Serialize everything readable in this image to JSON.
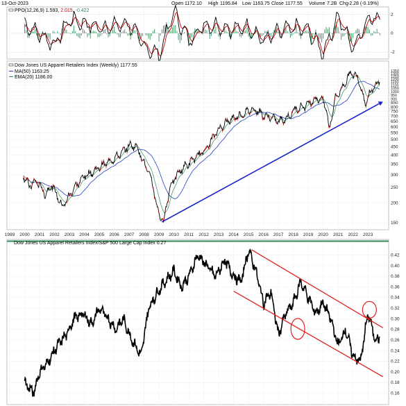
{
  "header": {
    "date": "13-Oct-2023",
    "open_label": "Open",
    "open": "1172.10",
    "high_label": "High",
    "high": "1195.84",
    "low_label": "Low",
    "low": "1163.75",
    "close_label": "Close",
    "close": "1177.55",
    "volume_label": "Volume",
    "volume": "7.2B",
    "chg_label": "Chg",
    "chg": "-2.28 (-0.19%)"
  },
  "ppo_panel": {
    "legend_name": "PPO(12,26,9)",
    "legend_v1": "1.593",
    "legend_v2": "2.015",
    "legend_v3": "-0.422",
    "colors": {
      "ppo": "#000000",
      "signal": "#cc0000",
      "hist": "#2e8b57"
    }
  },
  "price_panel": {
    "legend_title": "Dow Jones US Apparel Retailers Index (Weekly) 1177.55",
    "legend_ma": "MA(50) 1163.25",
    "legend_ema": "EMA(20) 1186.00",
    "colors": {
      "price": "#000000",
      "ma": "#1f3fbf",
      "ema": "#2e8b57",
      "trend": "#1a24c8"
    }
  },
  "ratio_panel": {
    "legend_title": "Dow Jones US Apparel Retailers Index/S&P 500 Large Cap Index 0.27",
    "colors": {
      "ratio": "#000000",
      "channel": "#e02020"
    }
  },
  "chart_data": [
    {
      "type": "line",
      "title": "PPO(12,26,9)",
      "ylim": [
        -2.5,
        2.5
      ],
      "y_ticks": [
        "2",
        "0",
        "-2"
      ],
      "x": [
        1999,
        2000,
        2002,
        2003,
        2005,
        2007,
        2008,
        2009,
        2010,
        2011,
        2012,
        2013,
        2014,
        2015,
        2016,
        2017,
        2018,
        2019,
        2020,
        2021,
        2022,
        2023
      ],
      "series": [
        {
          "name": "PPO",
          "values": [
            0.5,
            1.0,
            -1.2,
            1.5,
            0.6,
            1.0,
            -1.4,
            -2.3,
            2.3,
            -0.8,
            0.9,
            0.8,
            0.4,
            0.7,
            -0.8,
            0.1,
            0.6,
            0.3,
            -2.0,
            1.8,
            -1.6,
            1.593
          ]
        },
        {
          "name": "Signal",
          "values": [
            0.4,
            0.8,
            -0.9,
            1.2,
            0.5,
            0.9,
            -1.1,
            -2.0,
            1.9,
            -0.6,
            0.7,
            0.7,
            0.4,
            0.6,
            -0.6,
            0.0,
            0.5,
            0.3,
            -1.6,
            1.5,
            -1.3,
            2.015
          ]
        }
      ]
    },
    {
      "type": "line",
      "title": "Dow Jones US Apparel Retailers Index (Weekly)",
      "log_scale": true,
      "ylim": [
        140,
        1450
      ],
      "y_ticks": [
        "1350",
        "1300",
        "1250",
        "1200",
        "1150",
        "1100",
        "1050",
        "1000",
        "950",
        "900",
        "850",
        "800",
        "750",
        "700",
        "650",
        "600",
        "550",
        "500",
        "450",
        "400",
        "350",
        "300",
        "250",
        "200",
        "150"
      ],
      "x_ticks": [
        "1999",
        "2000",
        "2001",
        "2002",
        "2003",
        "2004",
        "2005",
        "2006",
        "2007",
        "2008",
        "2009",
        "2010",
        "2011",
        "2012",
        "2013",
        "2014",
        "2015",
        "2016",
        "2017",
        "2018",
        "2019",
        "2020",
        "2021",
        "2022",
        "2023"
      ],
      "x": [
        1999.9,
        2000.3,
        2000.8,
        2001.4,
        2001.8,
        2002.5,
        2002.8,
        2003.2,
        2004.0,
        2004.5,
        2005.2,
        2006.0,
        2006.6,
        2007.0,
        2007.5,
        2008.0,
        2008.5,
        2008.9,
        2009.3,
        2009.8,
        2010.5,
        2011.0,
        2011.6,
        2012.2,
        2013.0,
        2013.5,
        2014.0,
        2014.6,
        2015.2,
        2015.6,
        2016.0,
        2016.5,
        2017.0,
        2017.6,
        2018.2,
        2018.8,
        2019.4,
        2019.9,
        2020.2,
        2020.4,
        2020.8,
        2021.3,
        2021.8,
        2022.3,
        2022.8,
        2023.2,
        2023.8
      ],
      "series": [
        {
          "name": "Price",
          "values": [
            300,
            255,
            275,
            225,
            260,
            190,
            205,
            240,
            295,
            310,
            345,
            380,
            420,
            460,
            455,
            355,
            280,
            180,
            150,
            260,
            325,
            355,
            395,
            440,
            580,
            640,
            685,
            720,
            775,
            760,
            705,
            690,
            650,
            685,
            785,
            815,
            895,
            905,
            790,
            560,
            900,
            1060,
            1300,
            1250,
            840,
            1000,
            1177.55
          ]
        }
      ],
      "trend_line": {
        "from": [
          2009.2,
          152
        ],
        "to": [
          2024.0,
          865
        ]
      }
    },
    {
      "type": "line",
      "title": "Dow Jones US Apparel Retailers Index/S&P 500 Large Cap Index",
      "ylim": [
        0.145,
        0.435
      ],
      "y_ticks": [
        "0.42",
        "0.40",
        "0.38",
        "0.36",
        "0.34",
        "0.32",
        "0.30",
        "0.28",
        "0.26",
        "0.24",
        "0.22",
        "0.20",
        "0.18",
        "0.16"
      ],
      "x": [
        2000.0,
        2000.6,
        2001.0,
        2001.6,
        2002.2,
        2002.8,
        2003.3,
        2003.9,
        2004.5,
        2005.0,
        2005.6,
        2006.1,
        2006.6,
        2007.2,
        2007.8,
        2008.3,
        2008.9,
        2009.4,
        2010.0,
        2010.5,
        2011.0,
        2011.6,
        2012.2,
        2012.8,
        2013.4,
        2014.0,
        2014.5,
        2015.0,
        2015.5,
        2016.0,
        2016.5,
        2017.0,
        2017.5,
        2018.0,
        2018.5,
        2019.0,
        2019.5,
        2020.0,
        2020.5,
        2021.0,
        2021.5,
        2022.0,
        2022.5,
        2023.0,
        2023.5,
        2024.0
      ],
      "series": [
        {
          "name": "Ratio",
          "values": [
            0.18,
            0.16,
            0.2,
            0.22,
            0.25,
            0.27,
            0.3,
            0.31,
            0.29,
            0.32,
            0.3,
            0.28,
            0.3,
            0.26,
            0.23,
            0.32,
            0.35,
            0.37,
            0.39,
            0.36,
            0.38,
            0.42,
            0.4,
            0.38,
            0.41,
            0.38,
            0.37,
            0.43,
            0.39,
            0.33,
            0.35,
            0.27,
            0.31,
            0.33,
            0.37,
            0.34,
            0.31,
            0.33,
            0.3,
            0.25,
            0.28,
            0.23,
            0.22,
            0.31,
            0.26,
            0.27
          ]
        }
      ],
      "channel_upper": {
        "from": [
          2015.2,
          0.43
        ],
        "to": [
          2024.0,
          0.283
        ]
      },
      "channel_lower": {
        "from": [
          2014.0,
          0.352
        ],
        "to": [
          2024.0,
          0.191
        ]
      },
      "circles": [
        [
          2018.3,
          0.281
        ],
        [
          2023.1,
          0.317
        ]
      ]
    }
  ]
}
